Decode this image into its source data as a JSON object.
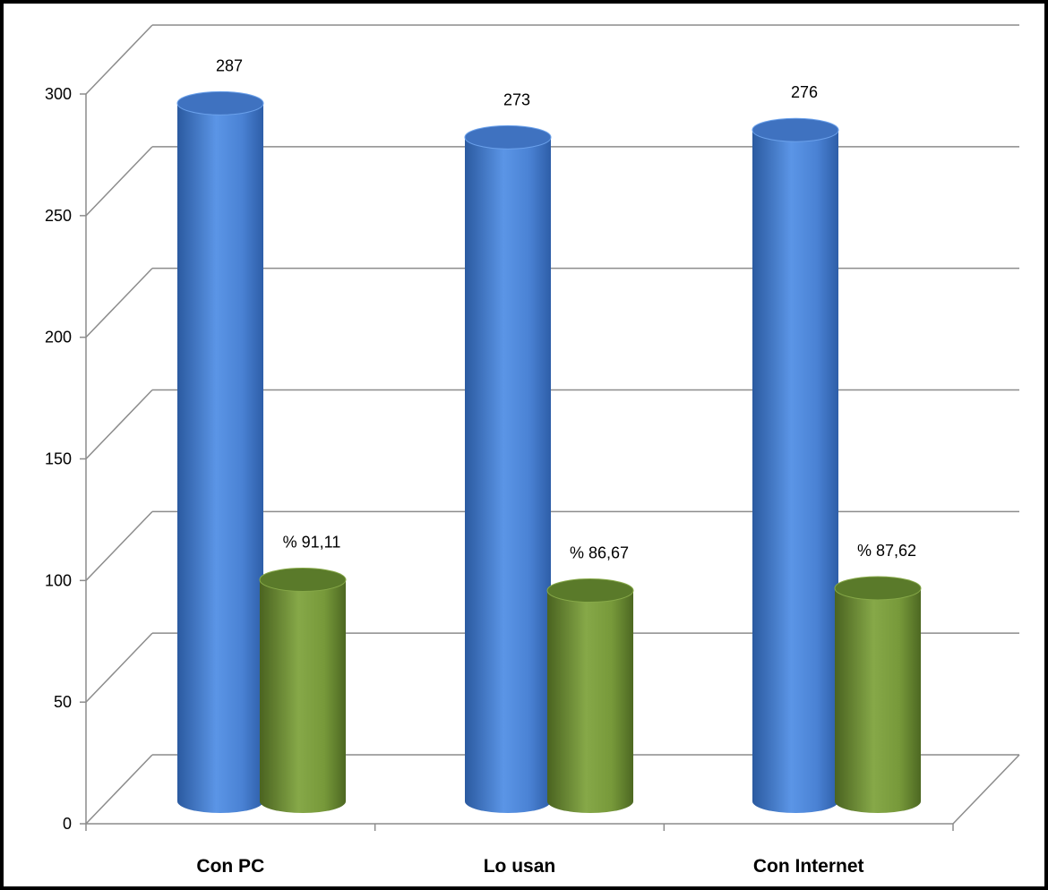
{
  "chart_data": {
    "type": "bar",
    "title": "",
    "xlabel": "",
    "ylabel": "",
    "ylim": [
      0,
      300
    ],
    "yticks": [
      0,
      50,
      100,
      150,
      200,
      250,
      300
    ],
    "categories": [
      "Con PC",
      "Lo usan",
      "Con Internet"
    ],
    "series": [
      {
        "values": [
          287,
          273,
          276
        ],
        "labels": [
          "287",
          "273",
          "276"
        ],
        "color": "#4a82d4",
        "style": "3d-cylinder"
      },
      {
        "values": [
          91.11,
          86.67,
          87.62
        ],
        "labels": [
          "% 91,11",
          "% 86,67",
          "% 87,62"
        ],
        "color": "#77993a",
        "style": "3d-cylinder"
      }
    ],
    "grid": true,
    "legend": "none"
  }
}
